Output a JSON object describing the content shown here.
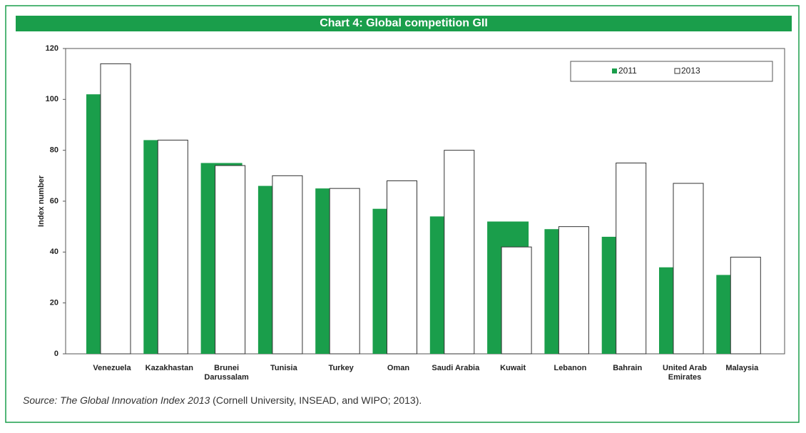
{
  "chart_data": {
    "type": "bar",
    "title": "Chart 4: Global competition GII",
    "y_label": "Index number",
    "categories": [
      "Venezuela",
      "Kazakhastan",
      "Brunei Darussalam",
      "Tunisia",
      "Turkey",
      "Oman",
      "Saudi Arabia",
      "Kuwait",
      "Lebanon",
      "Bahrain",
      "United Arab Emirates",
      "Malaysia"
    ],
    "series": [
      {
        "name": "2011",
        "color": "#1a9e4b",
        "values": [
          102,
          84,
          75,
          66,
          65,
          57,
          54,
          52,
          49,
          46,
          34,
          31
        ]
      },
      {
        "name": "2013",
        "color": "#ffffff",
        "values": [
          114,
          84,
          74,
          70,
          65,
          68,
          80,
          42,
          50,
          75,
          67,
          38
        ]
      }
    ],
    "ylim": [
      0,
      120
    ],
    "yticks": [
      0,
      20,
      40,
      60,
      80,
      100,
      120
    ],
    "legend": "upper right",
    "source_title": "Source: The Global Innovation Index 2013",
    "source_rest": " (Cornell University, INSEAD, and WIPO; 2013)."
  }
}
